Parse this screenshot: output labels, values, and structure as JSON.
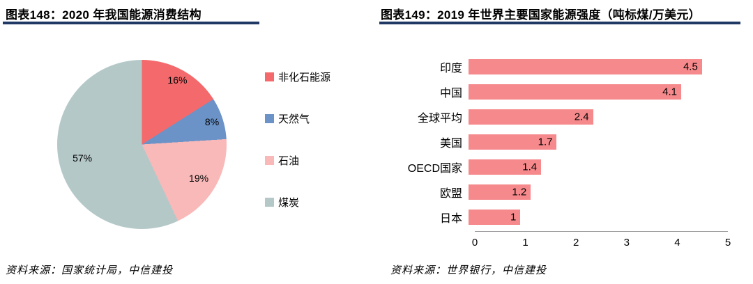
{
  "header": {
    "left_title": "图表148：2020 年我国能源消费结构",
    "right_title": "图表149：2019 年世界主要国家能源强度（吨标煤/万美元）"
  },
  "footer": {
    "left_source": "资料来源：国家统计局，中信建投",
    "right_source": "资料来源：世界银行，中信建投"
  },
  "chart_data": [
    {
      "type": "pie",
      "title": "2020 年我国能源消费结构",
      "legend_position": "right",
      "labels": [
        "非化石能源",
        "天然气",
        "石油",
        "煤炭"
      ],
      "values": [
        16,
        8,
        19,
        57
      ],
      "value_labels": [
        "16%",
        "8%",
        "19%",
        "57%"
      ],
      "colors": [
        "#F4696B",
        "#6B93C8",
        "#F9B9B9",
        "#B5C8C8"
      ],
      "start_angle": "top",
      "direction": "clockwise"
    },
    {
      "type": "bar",
      "orientation": "horizontal",
      "title": "2019 年世界主要国家能源强度（吨标煤/万美元）",
      "categories": [
        "印度",
        "中国",
        "全球平均",
        "美国",
        "OECD国家",
        "欧盟",
        "日本"
      ],
      "values": [
        4.5,
        4.1,
        2.4,
        1.7,
        1.4,
        1.2,
        1
      ],
      "value_labels": [
        "4.5",
        "4.1",
        "2.4",
        "1.7",
        "1.4",
        "1.2",
        "1"
      ],
      "bar_color": "#F5898B",
      "xlim": [
        0,
        5
      ],
      "x_ticks": [
        "0",
        "1",
        "2",
        "3",
        "4",
        "5"
      ],
      "grid": false,
      "legend_position": "none"
    }
  ]
}
